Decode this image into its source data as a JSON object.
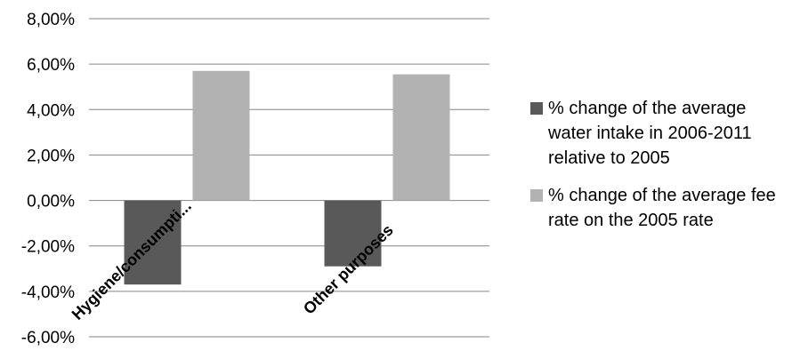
{
  "chart_data": {
    "type": "bar",
    "categories": [
      "Hygiene/consumpti...",
      "Other purposes"
    ],
    "series": [
      {
        "name": "% change of the average water intake in 2006-2011 relative to 2005",
        "values": [
          -3.7,
          -2.9
        ],
        "color": "#595959"
      },
      {
        "name": "% change of the average fee rate on the 2005 rate",
        "values": [
          5.7,
          5.55
        ],
        "color": "#b2b2b2"
      }
    ],
    "ylim": [
      -6,
      8
    ],
    "yticks": [
      8,
      6,
      4,
      2,
      0,
      -2,
      -4,
      -6
    ],
    "ytick_labels": [
      "8,00%",
      "6,00%",
      "4,00%",
      "2,00%",
      "0,00%",
      "-2,00%",
      "-4,00%",
      "-6,00%"
    ],
    "grid": true,
    "legend_position": "right"
  }
}
